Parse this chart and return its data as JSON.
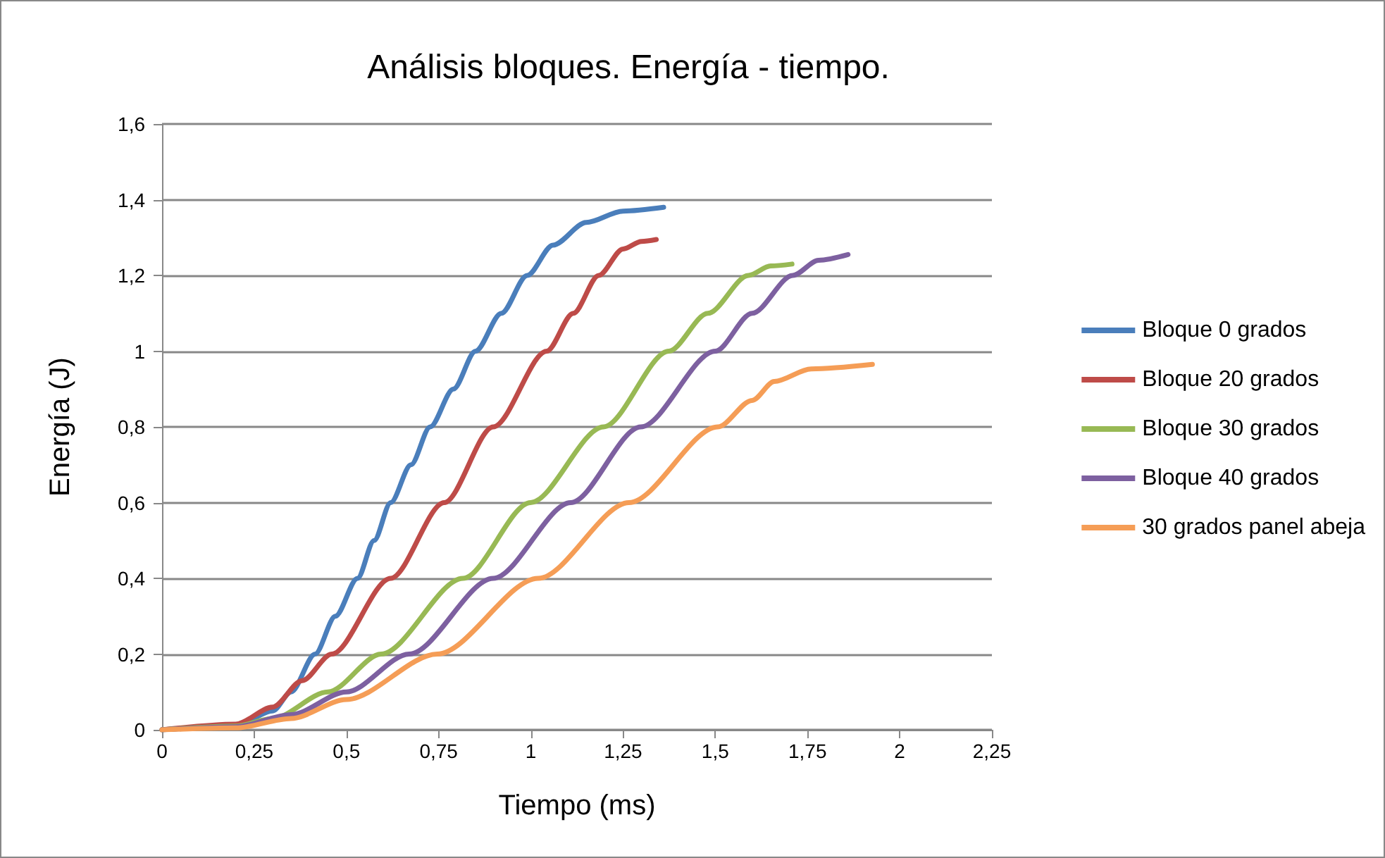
{
  "chart_data": {
    "type": "line",
    "title": "Análisis bloques. Energía - tiempo.",
    "xlabel": "Tiempo (ms)",
    "ylabel": "Energía (J)",
    "xlim": [
      0,
      2.25
    ],
    "xticks": [
      {
        "value": 0,
        "label": "0"
      },
      {
        "value": 0.25,
        "label": "0,25"
      },
      {
        "value": 0.5,
        "label": "0,5"
      },
      {
        "value": 0.75,
        "label": "0,75"
      },
      {
        "value": 1,
        "label": "1"
      },
      {
        "value": 1.25,
        "label": "1,25"
      },
      {
        "value": 1.5,
        "label": "1,5"
      },
      {
        "value": 1.75,
        "label": "1,75"
      },
      {
        "value": 2,
        "label": "2"
      },
      {
        "value": 2.25,
        "label": "2,25"
      }
    ],
    "ylim": [
      0,
      1.6
    ],
    "yticks": [
      {
        "value": 0,
        "label": "0"
      },
      {
        "value": 0.2,
        "label": "0,2"
      },
      {
        "value": 0.4,
        "label": "0,4"
      },
      {
        "value": 0.6,
        "label": "0,6"
      },
      {
        "value": 0.8,
        "label": "0,8"
      },
      {
        "value": 1,
        "label": "1"
      },
      {
        "value": 1.2,
        "label": "1,2"
      },
      {
        "value": 1.4,
        "label": "1,4"
      },
      {
        "value": 1.6,
        "label": "1,6"
      }
    ],
    "grid": "y",
    "legend": "right",
    "marker": "none",
    "line_style": "solid",
    "series": [
      {
        "name": "Bloque 0 grados",
        "color": "#4a7ebb",
        "x": [
          0,
          0.2,
          0.3,
          0.35,
          0.415,
          0.47,
          0.53,
          0.575,
          0.62,
          0.675,
          0.727,
          0.79,
          0.85,
          0.92,
          0.99,
          1.06,
          1.15,
          1.25,
          1.36
        ],
        "values": [
          0,
          0.01,
          0.05,
          0.1,
          0.2,
          0.3,
          0.4,
          0.5,
          0.6,
          0.7,
          0.8,
          0.9,
          1.0,
          1.1,
          1.2,
          1.28,
          1.34,
          1.37,
          1.38
        ]
      },
      {
        "name": "Bloque 20 grados",
        "color": "#be4b48",
        "x": [
          0,
          0.2,
          0.3,
          0.38,
          0.46,
          0.62,
          0.765,
          0.898,
          1.043,
          1.115,
          1.184,
          1.25,
          1.3,
          1.34
        ],
        "values": [
          0,
          0.015,
          0.06,
          0.13,
          0.2,
          0.4,
          0.6,
          0.8,
          1.0,
          1.1,
          1.2,
          1.27,
          1.29,
          1.295
        ]
      },
      {
        "name": "Bloque 30 grados",
        "color": "#98b954",
        "x": [
          0,
          0.2,
          0.3,
          0.45,
          0.594,
          0.816,
          0.999,
          1.197,
          1.374,
          1.48,
          1.59,
          1.65,
          1.708
        ],
        "values": [
          0,
          0.01,
          0.03,
          0.1,
          0.2,
          0.4,
          0.6,
          0.8,
          1.0,
          1.1,
          1.2,
          1.225,
          1.23
        ]
      },
      {
        "name": "Bloque 40 grados",
        "color": "#7d60a0",
        "x": [
          0,
          0.2,
          0.35,
          0.5,
          0.67,
          0.898,
          1.108,
          1.298,
          1.5,
          1.6,
          1.71,
          1.78,
          1.86
        ],
        "values": [
          0,
          0.008,
          0.04,
          0.1,
          0.2,
          0.4,
          0.6,
          0.8,
          1.0,
          1.1,
          1.2,
          1.24,
          1.255
        ]
      },
      {
        "name": "30 grados panel abeja",
        "color": "#f59d56",
        "x": [
          0,
          0.2,
          0.35,
          0.5,
          0.746,
          1.02,
          1.266,
          1.507,
          1.6,
          1.66,
          1.76,
          1.926
        ],
        "values": [
          0,
          0.005,
          0.03,
          0.08,
          0.2,
          0.4,
          0.6,
          0.8,
          0.87,
          0.92,
          0.953,
          0.965
        ]
      }
    ]
  }
}
